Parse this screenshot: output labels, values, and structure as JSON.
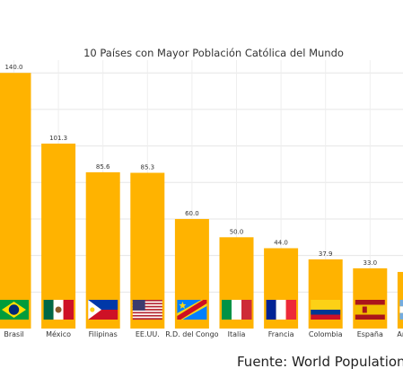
{
  "chart_data": {
    "type": "bar",
    "title": "10 Países con Mayor Población Católica del Mundo",
    "categories": [
      "Brasil",
      "México",
      "Filipinas",
      "EE.UU.",
      "R.D. del Congo",
      "Italia",
      "Francia",
      "Colombia",
      "España",
      "Argentina"
    ],
    "values": [
      140.0,
      101.3,
      85.6,
      85.3,
      60.0,
      50.0,
      44.0,
      37.9,
      33.0,
      31.0
    ],
    "data_labels": [
      "140.0",
      "101.3",
      "85.6",
      "85.3",
      "60.0",
      "50.0",
      "44.0",
      "37.9",
      "33.0",
      ""
    ],
    "ylim": [
      0,
      147
    ],
    "grid": true,
    "bar_color": "#FFB300",
    "flag_icons": [
      "brazil-flag-icon",
      "mexico-flag-icon",
      "philippines-flag-icon",
      "usa-flag-icon",
      "dr-congo-flag-icon",
      "italy-flag-icon",
      "france-flag-icon",
      "colombia-flag-icon",
      "spain-flag-icon",
      "argentina-flag-icon"
    ]
  },
  "footer": {
    "source_text": "Fuente: World Population"
  }
}
